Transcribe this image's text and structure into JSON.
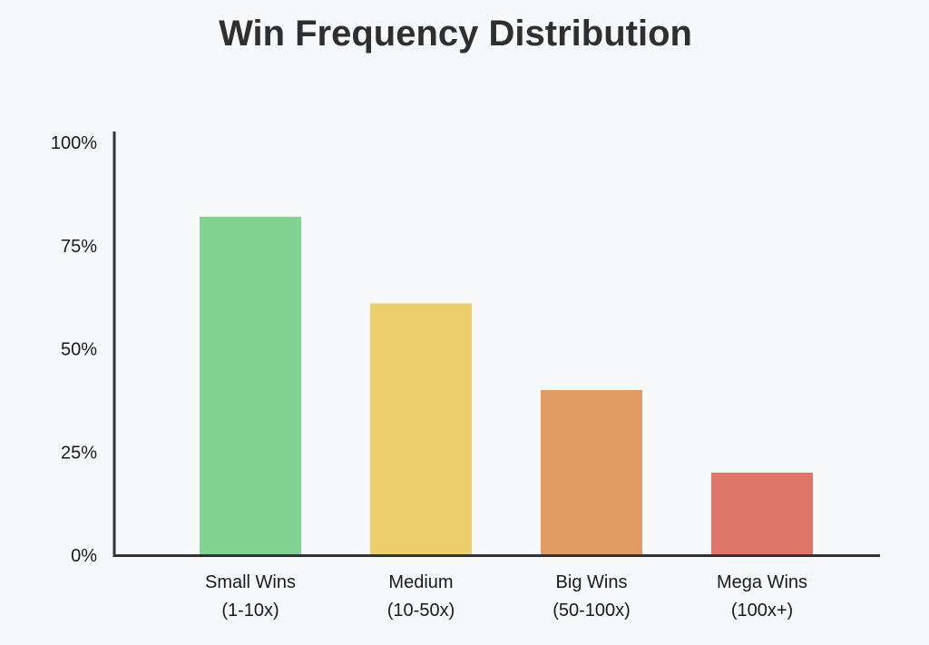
{
  "chart_data": {
    "type": "bar",
    "title": "Win Frequency Distribution",
    "xlabel": "",
    "ylabel": "",
    "ylim": [
      0,
      100
    ],
    "y_ticks": [
      {
        "value": 0,
        "label": "0%"
      },
      {
        "value": 25,
        "label": "25%"
      },
      {
        "value": 50,
        "label": "50%"
      },
      {
        "value": 75,
        "label": "75%"
      },
      {
        "value": 100,
        "label": "100%"
      }
    ],
    "categories": [
      {
        "line1": "Small Wins",
        "line2": "(1-10x)"
      },
      {
        "line1": "Medium",
        "line2": "(10-50x)"
      },
      {
        "line1": "Big Wins",
        "line2": "(50-100x)"
      },
      {
        "line1": "Mega Wins",
        "line2": "(100x+)"
      }
    ],
    "values": [
      82,
      61,
      40,
      20
    ],
    "colors": [
      "#82d392",
      "#ecd06d",
      "#e09c63",
      "#df766a"
    ],
    "grid": false,
    "legend": "none"
  }
}
